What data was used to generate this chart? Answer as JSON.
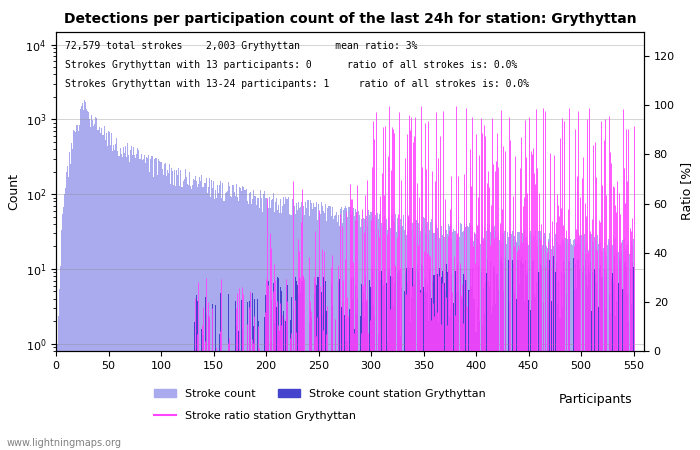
{
  "title": "Detections per participation count of the last 24h for station: Grythyttan",
  "xlabel": "Participants",
  "ylabel_left": "Count",
  "ylabel_right": "Ratio [%]",
  "annotation_line1": "72,579 total strokes    2,003 Grythyttan      mean ratio: 3%",
  "annotation_line2": "Strokes Grythyttan with 13 participants: 0      ratio of all strokes is: 0.0%",
  "annotation_line3": "Strokes Grythyttan with 13-24 participants: 1     ratio of all strokes is: 0.0%",
  "xlim": [
    0,
    560
  ],
  "ylim_right": [
    0,
    130
  ],
  "color_stroke_all": "#aaaaee",
  "color_stroke_station": "#4444cc",
  "color_ratio": "#ff44ff",
  "legend1": "Stroke count",
  "legend2": "Stroke count station Grythyttan",
  "legend3": "Stroke ratio station Grythyttan",
  "watermark": "www.lightningmaps.org",
  "bg_color": "#ffffff",
  "grid_color": "#888888"
}
